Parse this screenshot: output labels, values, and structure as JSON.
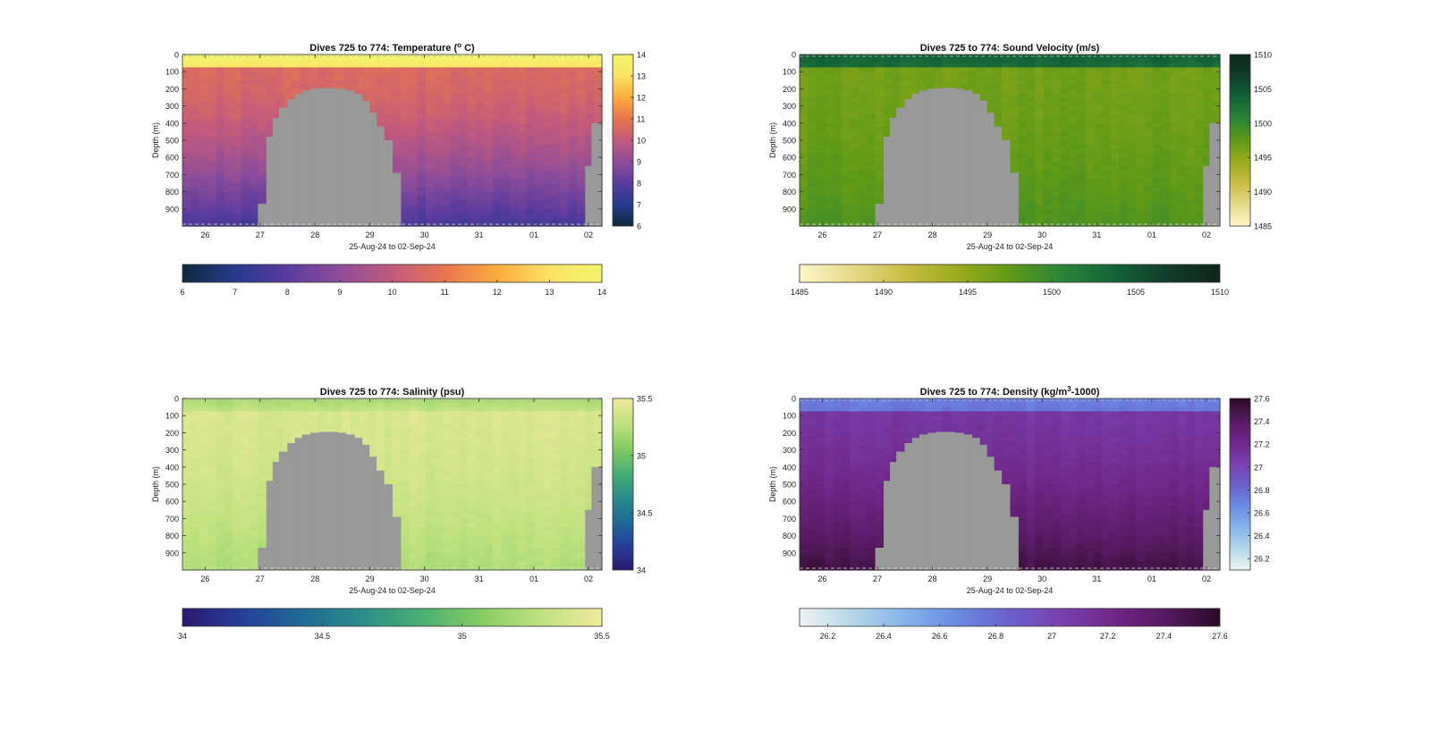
{
  "figure": {
    "background": "#ffffff"
  },
  "chart_data": [
    {
      "type": "heatmap",
      "id": "temperature",
      "title": "Dives 725 to 774: Temperature (°C)",
      "title_parts": [
        "Dives 725 to 774: Temperature (",
        "o",
        " C)"
      ],
      "xlabel": "25-Aug-24 to 02-Sep-24",
      "ylabel": "Depth (m)",
      "xticks": [
        "26",
        "27",
        "28",
        "29",
        "30",
        "31",
        "01",
        "02"
      ],
      "yticks": [
        "0",
        "100",
        "200",
        "300",
        "400",
        "500",
        "600",
        "700",
        "800",
        "900"
      ],
      "ylim": [
        0,
        1000
      ],
      "colorbar_ticks": [
        "6",
        "7",
        "8",
        "9",
        "10",
        "11",
        "12",
        "13",
        "14"
      ],
      "colorbar_ticks_horizontal": [
        "6",
        "7",
        "8",
        "9",
        "10",
        "11",
        "12",
        "13",
        "14"
      ],
      "clim": [
        6,
        14
      ],
      "colormap": [
        "#0d2a3a",
        "#263a8c",
        "#5a3b9e",
        "#8e4d99",
        "#c25a7d",
        "#e8754f",
        "#fbab3d",
        "#fbe265",
        "#f2f56a"
      ],
      "profile": {
        "surface": 14,
        "mixed_depth": 70,
        "mixed_value": 13.3,
        "sub_value": 10.6,
        "deep_value": 7.6
      },
      "no_data_color": "#999999"
    },
    {
      "type": "heatmap",
      "id": "sound_velocity",
      "title": "Dives 725 to 774: Sound Velocity (m/s)",
      "title_parts": [
        "Dives 725 to 774: Sound Velocity (m/s)"
      ],
      "xlabel": "25-Aug-24 to 02-Sep-24",
      "ylabel": "Depth (m)",
      "xticks": [
        "26",
        "27",
        "28",
        "29",
        "30",
        "31",
        "01",
        "02"
      ],
      "yticks": [
        "0",
        "100",
        "200",
        "300",
        "400",
        "500",
        "600",
        "700",
        "800",
        "900"
      ],
      "ylim": [
        0,
        1000
      ],
      "colorbar_ticks": [
        "1485",
        "1490",
        "1495",
        "1500",
        "1505",
        "1510"
      ],
      "colorbar_ticks_horizontal": [
        "1485",
        "1490",
        "1495",
        "1500",
        "1505",
        "1510"
      ],
      "clim": [
        1485,
        1510
      ],
      "colormap": [
        "#fdf7c8",
        "#e6d98a",
        "#c9bd45",
        "#9bab1c",
        "#5f9a17",
        "#2a8438",
        "#136338",
        "#113d2a",
        "#0f231a"
      ],
      "profile": {
        "surface": 1504,
        "mixed_depth": 70,
        "mixed_value": 1503,
        "sub_value": 1496.5,
        "deep_value": 1498.5
      },
      "no_data_color": "#999999"
    },
    {
      "type": "heatmap",
      "id": "salinity",
      "title": "Dives 725 to 774: Salinity (psu)",
      "title_parts": [
        "Dives 725 to 774: Salinity (psu)"
      ],
      "xlabel": "25-Aug-24 to 02-Sep-24",
      "ylabel": "Depth (m)",
      "xticks": [
        "26",
        "27",
        "28",
        "29",
        "30",
        "31",
        "01",
        "02"
      ],
      "yticks": [
        "0",
        "100",
        "200",
        "300",
        "400",
        "500",
        "600",
        "700",
        "800",
        "900"
      ],
      "ylim": [
        0,
        1000
      ],
      "colorbar_ticks": [
        "34",
        "34.5",
        "35",
        "35.5"
      ],
      "colorbar_ticks_horizontal": [
        "34",
        "34.5",
        "35",
        "35.5"
      ],
      "clim": [
        34,
        35.5
      ],
      "colormap": [
        "#2a1a6e",
        "#263f9a",
        "#1f6a96",
        "#2b8e89",
        "#4aaf73",
        "#86cd63",
        "#c0e27f",
        "#f0ea9c"
      ],
      "profile": {
        "surface": 35.2,
        "mixed_depth": 70,
        "mixed_value": 35.3,
        "sub_value": 35.4,
        "deep_value": 35.22
      },
      "no_data_color": "#999999"
    },
    {
      "type": "heatmap",
      "id": "density",
      "title": "Dives 725 to 774: Density (kg/m³-1000)",
      "title_parts": [
        "Dives 725 to 774: Density (kg/m",
        "3",
        "-1000)"
      ],
      "xlabel": "25-Aug-24 to 02-Sep-24",
      "ylabel": "Depth (m)",
      "xticks": [
        "26",
        "27",
        "28",
        "29",
        "30",
        "31",
        "01",
        "02"
      ],
      "yticks": [
        "0",
        "100",
        "200",
        "300",
        "400",
        "500",
        "600",
        "700",
        "800",
        "900"
      ],
      "ylim": [
        0,
        1000
      ],
      "colorbar_ticks": [
        "26.2",
        "26.4",
        "26.6",
        "26.8",
        "27",
        "27.2",
        "27.4",
        "27.6"
      ],
      "colorbar_ticks_horizontal": [
        "26.2",
        "26.4",
        "26.6",
        "26.8",
        "27",
        "27.2",
        "27.4",
        "27.6"
      ],
      "clim": [
        26.1,
        27.6
      ],
      "colormap": [
        "#eef4f4",
        "#b5d6e9",
        "#86b4ea",
        "#6a8ae2",
        "#6b5fcd",
        "#7a3fae",
        "#6f2687",
        "#55195e",
        "#2a0a26"
      ],
      "profile": {
        "surface": 26.7,
        "mixed_depth": 70,
        "mixed_value": 26.75,
        "sub_value": 27.1,
        "deep_value": 27.5
      },
      "no_data_color": "#999999"
    }
  ]
}
